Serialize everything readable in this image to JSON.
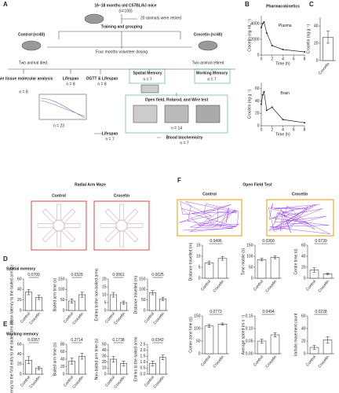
{
  "figure": {
    "panel_labels": [
      "A",
      "B",
      "C",
      "D",
      "E",
      "F"
    ],
    "maze_title": "Radial Arm Maze",
    "maze_groups": [
      "Control",
      "Crocetin"
    ],
    "oft_title": "Open Field Test",
    "oft_groups": [
      "Control",
      "Crocetin"
    ],
    "spatial": "Spatial memory",
    "working": "Working memory"
  },
  "diagram": {
    "title": "16–18 months old C57BL/6J mice",
    "n_total": "(n=100)",
    "retired": "20 animals were retired",
    "training": "Training and grouping",
    "control": "Control (n=40)",
    "crocetin": "Crocetin (n=40)",
    "dosing": "Four months volunteer dosing",
    "died": "Two animal died",
    "retired2": "Two animal retired",
    "boxes": [
      {
        "label": "Brain tissue molecular analysis",
        "n": "n = 8"
      },
      {
        "label": "Lifespan",
        "n": "n = 8"
      },
      {
        "label": "OGTT & Lifespan",
        "n": "n = 8"
      },
      {
        "label": "Spatial Memory",
        "n": "n = 7"
      },
      {
        "label": "Working Memory",
        "n": "n = 7"
      },
      {
        "label": "Open field, Rotarod, and Wire test",
        "n": "n = 14"
      },
      {
        "label": "Lifespan",
        "n": "n = 7"
      },
      {
        "label": "Blood biochemistry",
        "n": "n = 7"
      }
    ],
    "n_graph": "n = 23"
  },
  "chart_data": [
    {
      "type": "line",
      "title": "Pharmacokinetics",
      "annotation": "Plasma",
      "x_label": "Time (h)",
      "y_label": "Crocetin (ng mL⁻¹)",
      "x": [
        0,
        0.25,
        0.5,
        1,
        2,
        4,
        8
      ],
      "values": [
        3500,
        4000,
        4200,
        2800,
        1200,
        700,
        400
      ],
      "color": "#222222",
      "xlim": [
        0,
        8
      ],
      "xticks": [
        0,
        2,
        4,
        6,
        8
      ],
      "ylim": [
        0,
        5000
      ],
      "yticks": [
        0,
        2000,
        4000
      ]
    },
    {
      "type": "line",
      "annotation": "Brain",
      "x_label": "Time (h)",
      "y_label": "Crocetin (ng g⁻¹)",
      "x": [
        0,
        0.25,
        0.5,
        1,
        2,
        4,
        8
      ],
      "values": [
        35,
        50,
        55,
        25,
        30,
        10,
        5
      ],
      "color": "#222222",
      "xlim": [
        0,
        8
      ],
      "xticks": [
        0,
        2,
        4,
        6,
        8
      ],
      "ylim": [
        0,
        70
      ],
      "yticks": [
        0,
        20,
        40,
        60
      ]
    },
    {
      "type": "bar",
      "y_label": "Crocetin (ng g⁻¹)",
      "categories": [
        "Crocetin"
      ],
      "values": [
        27
      ],
      "errors": [
        7
      ],
      "color": "#ffffff",
      "ylim": [
        0,
        50
      ],
      "yticks": [
        0,
        20,
        40
      ]
    },
    {
      "type": "bar",
      "y_label": "Mean latency to the baited arm (s)",
      "p_value": "0.0700",
      "categories": [
        "Control",
        "Crocetin"
      ],
      "values": [
        35,
        25
      ],
      "errors": [
        5,
        4
      ],
      "color": "#ffffff",
      "ylim": [
        0,
        60
      ],
      "yticks": [
        0,
        20,
        40,
        60
      ]
    },
    {
      "type": "bar",
      "y_label": "Baited arm time (s)",
      "p_value": "0.0329",
      "categories": [
        "Control",
        "Crocetin"
      ],
      "values": [
        45,
        75
      ],
      "errors": [
        10,
        12
      ],
      "color": "#ffffff",
      "ylim": [
        0,
        150
      ],
      "yticks": [
        0,
        50,
        100,
        150
      ]
    },
    {
      "type": "bar",
      "y_label": "Entries to the non-baited arms",
      "p_value": "0.0061",
      "categories": [
        "Control",
        "Crocetin"
      ],
      "values": [
        10,
        5
      ],
      "errors": [
        1.5,
        1
      ],
      "color": "#ffffff",
      "ylim": [
        0,
        20
      ],
      "yticks": [
        0,
        5,
        10,
        15,
        20
      ]
    },
    {
      "type": "bar",
      "y_label": "Distance travelled (m)",
      "p_value": "0.0025",
      "categories": [
        "Control",
        "Crocetin"
      ],
      "values": [
        85,
        55
      ],
      "errors": [
        10,
        8
      ],
      "color": "#ffffff",
      "ylim": [
        0,
        150
      ],
      "yticks": [
        0,
        50,
        100,
        150
      ]
    },
    {
      "type": "bar",
      "y_label": "Latency to the first entry to the baited arm (s)",
      "p_value": "0.0357",
      "categories": [
        "Control",
        "Crocetin"
      ],
      "values": [
        28,
        12
      ],
      "errors": [
        7,
        3
      ],
      "color": "#ffffff",
      "ylim": [
        0,
        60
      ],
      "yticks": [
        0,
        20,
        40,
        60
      ]
    },
    {
      "type": "bar",
      "y_label": "Baited arm time (s)",
      "p_value": "0.2714",
      "categories": [
        "Control",
        "Crocetin"
      ],
      "values": [
        35,
        48
      ],
      "errors": [
        8,
        8
      ],
      "color": "#ffffff",
      "ylim": [
        0,
        80
      ],
      "yticks": [
        0,
        20,
        40,
        60,
        80
      ]
    },
    {
      "type": "bar",
      "y_label": "Non-baited arm time (s)",
      "p_value": "0.1738",
      "categories": [
        "Control",
        "Crocetin"
      ],
      "values": [
        25,
        18
      ],
      "errors": [
        5,
        4
      ],
      "color": "#ffffff",
      "ylim": [
        0,
        50
      ],
      "yticks": [
        0,
        10,
        20,
        30,
        40,
        50
      ]
    },
    {
      "type": "bar",
      "y_label": "Entries to the baited arms",
      "p_value": "0.0342",
      "categories": [
        "Control",
        "Crocetin"
      ],
      "values": [
        0.9,
        1.4
      ],
      "errors": [
        0.2,
        0.2
      ],
      "color": "#ffffff",
      "ylim": [
        0,
        2.5
      ],
      "yticks": [
        {
          "value": 0,
          "label": "0.0"
        },
        0.5,
        {
          "value": 1,
          "label": "1.0"
        },
        1.5,
        {
          "value": 2,
          "label": "2.0"
        },
        2.5
      ]
    },
    {
      "type": "bar",
      "y_label": "Distance travelled (m)",
      "p_value": "0.0496",
      "categories": [
        "Control",
        "Crocetin"
      ],
      "values": [
        7,
        9
      ],
      "errors": [
        0.8,
        0.8
      ],
      "color": "#ffffff",
      "ylim": [
        0,
        15
      ],
      "yticks": [
        0,
        5,
        10,
        15
      ]
    },
    {
      "type": "bar",
      "y_label": "Time mobile (s)",
      "p_value": "0.0360",
      "categories": [
        "Control",
        "Crocetin"
      ],
      "values": [
        85,
        95
      ],
      "errors": [
        6,
        6
      ],
      "color": "#ffffff",
      "ylim": [
        0,
        150
      ],
      "yticks": [
        0,
        50,
        100,
        150
      ]
    },
    {
      "type": "bar",
      "y_label": "Centre time (s)",
      "p_value": "0.0739",
      "categories": [
        "Control",
        "Crocetin"
      ],
      "values": [
        15,
        8
      ],
      "errors": [
        4,
        1.5
      ],
      "color": "#ffffff",
      "ylim": [
        0,
        60
      ],
      "yticks": [
        0,
        20,
        40,
        60
      ]
    },
    {
      "type": "bar",
      "y_label": "Corner zone time (s)",
      "p_value": "0.0773",
      "categories": [
        "Control",
        "Crocetin"
      ],
      "values": [
        110,
        118
      ],
      "errors": [
        6,
        4
      ],
      "color": "#ffffff",
      "ylim": [
        0,
        150
      ],
      "yticks": [
        0,
        50,
        100,
        150
      ]
    },
    {
      "type": "bar",
      "y_label": "Average speed (m s⁻¹)",
      "p_value": "0.0494",
      "categories": [
        "Control",
        "Crocetin"
      ],
      "values": [
        0.05,
        0.075
      ],
      "errors": [
        0.008,
        0.008
      ],
      "color": "#ffffff",
      "ylim": [
        0,
        0.15
      ],
      "yticks": [
        {
          "value": 0,
          "label": "0.00"
        },
        0.05,
        {
          "value": 0.1,
          "label": "0.10"
        },
        0.15
      ]
    },
    {
      "type": "bar",
      "y_label": "Varticle movement count",
      "p_value": "0.0228",
      "categories": [
        "Control",
        "Crocetin"
      ],
      "values": [
        10,
        22
      ],
      "errors": [
        3,
        5
      ],
      "color": "#ffffff",
      "ylim": [
        0,
        60
      ],
      "yticks": [
        0,
        20,
        40,
        60
      ]
    }
  ]
}
